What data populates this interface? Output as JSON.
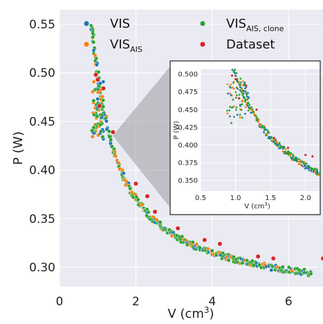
{
  "chart_data": {
    "type": "scatter",
    "xlabel": "V (cm",
    "xlabel_sup": "3",
    "xlabel_end": ")",
    "ylabel": "P (W)",
    "xlim": [
      0,
      6.9
    ],
    "ylim": [
      0.28,
      0.565
    ],
    "x_ticks": [
      "0",
      "2",
      "4",
      "6"
    ],
    "y_ticks": [
      "0.30",
      "0.35",
      "0.40",
      "0.45",
      "0.50",
      "0.55"
    ],
    "grid": true,
    "legend": {
      "placement": "top",
      "entries": [
        {
          "label": "VIS",
          "sub": "",
          "color": "#1f77b4"
        },
        {
          "label": "VIS",
          "sub": "AIS",
          "color": "#ff7f0e"
        },
        {
          "label": "VIS",
          "sub": "AIS, clone",
          "color": "#2ca02c"
        },
        {
          "label": "Dataset",
          "sub": "",
          "color": "#d62728"
        }
      ]
    },
    "curve": {
      "description_model": "P = a + b / (V + c)",
      "a": 0.263,
      "b": 0.2,
      "c": -0.15,
      "x_range": [
        0.85,
        6.6
      ]
    },
    "series": [
      {
        "name": "Dataset",
        "color": "#d62728",
        "x": [
          0.95,
          1.0,
          1.05,
          1.15,
          1.4,
          2.0,
          2.3,
          2.5,
          3.1,
          3.8,
          4.2,
          5.2,
          5.6,
          6.9
        ],
        "y": [
          0.498,
          0.493,
          0.466,
          0.484,
          0.439,
          0.386,
          0.373,
          0.357,
          0.34,
          0.328,
          0.324,
          0.311,
          0.309,
          0.309
        ]
      }
    ],
    "inset": {
      "xlabel": "V (cm",
      "xlabel_sup": "3",
      "xlabel_end": ")",
      "ylabel": "P (W)",
      "xlim": [
        0.5,
        2.2
      ],
      "ylim": [
        0.335,
        0.507
      ],
      "x_ticks": [
        "0.5",
        "1.0",
        "1.5",
        "2.0"
      ],
      "y_ticks": [
        "0.350",
        "0.375",
        "0.400",
        "0.425",
        "0.450",
        "0.475",
        "0.500"
      ],
      "dataset_x": [
        0.95,
        1.0,
        1.05,
        1.15,
        1.3,
        1.55,
        1.75,
        2.0,
        2.1
      ],
      "dataset_y": [
        0.498,
        0.493,
        0.466,
        0.484,
        0.45,
        0.41,
        0.396,
        0.386,
        0.384
      ]
    }
  }
}
